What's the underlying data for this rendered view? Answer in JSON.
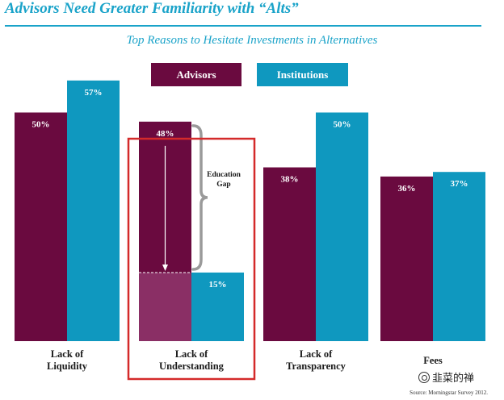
{
  "title": "Advisors Need Greater Familiarity with “Alts”",
  "chart_data": {
    "type": "bar",
    "title": "Top Reasons to Hesitate Investments in Alternatives",
    "categories": [
      "Lack of\nLiquidity",
      "Lack of\nUnderstanding",
      "Lack of\nTransparency",
      "Fees"
    ],
    "series": [
      {
        "name": "Advisors",
        "color": "#6a0a3f",
        "values": [
          50,
          48,
          38,
          36
        ],
        "labels": [
          "50%",
          "48%",
          "38%",
          "36%"
        ]
      },
      {
        "name": "Institutions",
        "color": "#0f98bf",
        "values": [
          57,
          15,
          50,
          37
        ],
        "labels": [
          "57%",
          "15%",
          "50%",
          "37%"
        ]
      }
    ],
    "ylim": [
      0,
      60
    ],
    "xlabel": "",
    "ylabel": "",
    "highlight": {
      "category": "Lack of\nUnderstanding",
      "color": "#d42a2a"
    },
    "annotation": {
      "text": "Education\nGap",
      "from_value": 48,
      "to_value": 15,
      "gap_fill_color": "#8a2f65"
    }
  },
  "source": "Source: Morningstar Survey 2012.",
  "watermark": "韭菜的禅"
}
